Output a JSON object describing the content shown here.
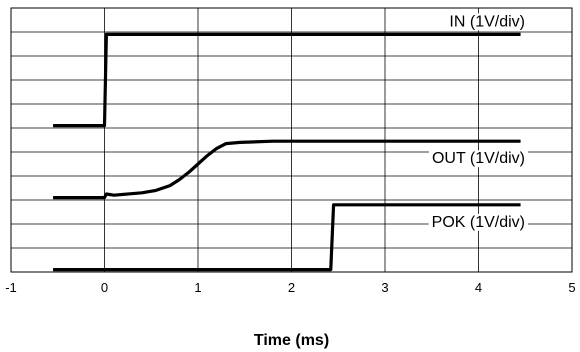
{
  "chart_data": {
    "type": "line",
    "title": "",
    "xlabel": "Time (ms)",
    "ylabel": "",
    "xlim": [
      -1,
      5
    ],
    "ylim": [
      0,
      11
    ],
    "x_ticks": [
      "-1",
      "0",
      "1",
      "2",
      "3",
      "4",
      "5"
    ],
    "y_gridlines": 11,
    "grid": true,
    "legend": "none",
    "series": [
      {
        "name": "IN (1V/div)",
        "x": [
          -0.55,
          0.0,
          0.02,
          4.45
        ],
        "y": [
          6.1,
          6.1,
          9.9,
          9.9
        ]
      },
      {
        "name": "OUT (1V/div)",
        "x": [
          -0.55,
          0.0,
          0.02,
          0.1,
          0.4,
          0.55,
          0.7,
          0.8,
          0.9,
          1.0,
          1.1,
          1.2,
          1.3,
          1.45,
          1.8,
          4.45
        ],
        "y": [
          3.1,
          3.1,
          3.25,
          3.2,
          3.3,
          3.4,
          3.6,
          3.85,
          4.15,
          4.5,
          4.85,
          5.15,
          5.35,
          5.4,
          5.45,
          5.45
        ]
      },
      {
        "name": "POK (1V/div)",
        "x": [
          -0.55,
          2.42,
          2.45,
          4.45
        ],
        "y": [
          0.1,
          0.1,
          2.8,
          2.8
        ]
      }
    ]
  }
}
